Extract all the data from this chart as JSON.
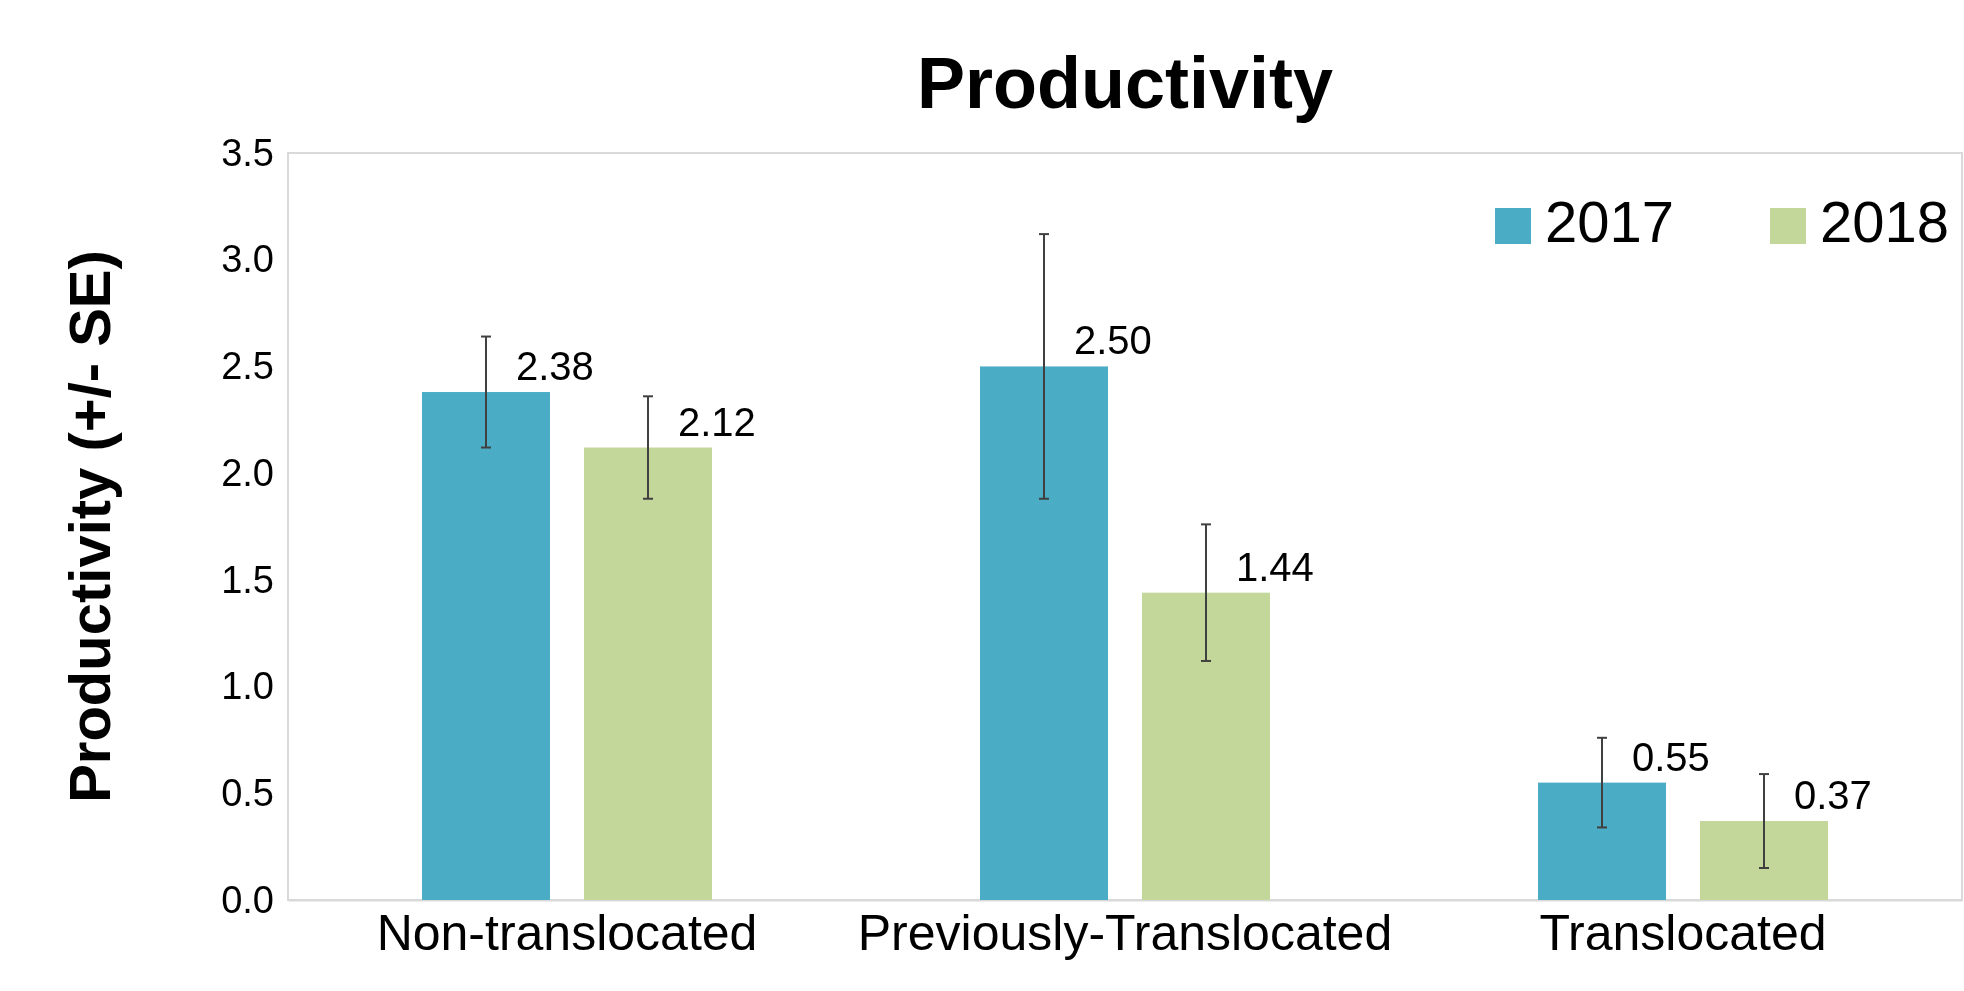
{
  "chart_data": {
    "type": "bar",
    "title": "Productivity",
    "ylabel": "Productivity (+/- SE)",
    "categories": [
      "Non-translocated",
      "Previously-Translocated",
      "Translocated"
    ],
    "series": [
      {
        "name": "2017",
        "color": "#4bacc6",
        "values": [
          2.38,
          2.5,
          0.55
        ],
        "errors": [
          0.26,
          0.62,
          0.21
        ],
        "value_labels": [
          "2.38",
          "2.50",
          "0.55"
        ]
      },
      {
        "name": "2018",
        "color": "#c3d79b",
        "values": [
          2.12,
          1.44,
          0.37
        ],
        "errors": [
          0.24,
          0.32,
          0.22
        ],
        "value_labels": [
          "2.12",
          "1.44",
          "0.37"
        ]
      }
    ],
    "ylim": [
      0,
      3.5
    ],
    "yticks": [
      {
        "value": 0,
        "label": "0.0"
      },
      {
        "value": 0.5,
        "label": "0.5"
      },
      {
        "value": 1,
        "label": "1.0"
      },
      {
        "value": 1.5,
        "label": "1.5"
      },
      {
        "value": 2,
        "label": "2.0"
      },
      {
        "value": 2.5,
        "label": "2.5"
      },
      {
        "value": 3,
        "label": "3.0"
      },
      {
        "value": 3.5,
        "label": "3.5"
      }
    ],
    "grid": false,
    "legend": "top right"
  }
}
